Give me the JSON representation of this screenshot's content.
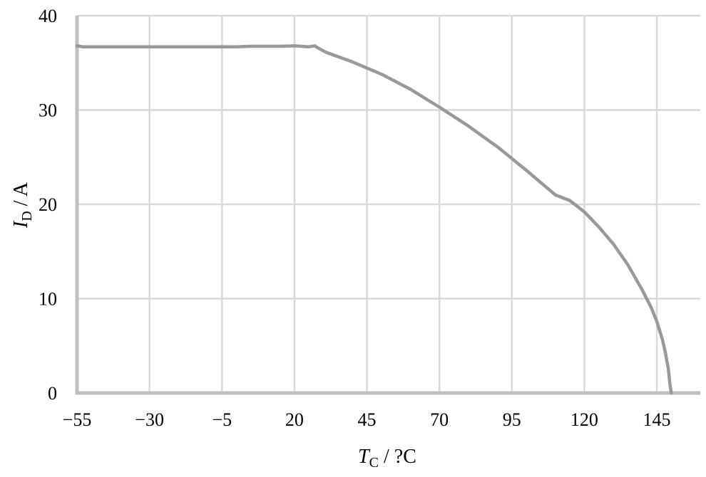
{
  "chart_data": {
    "type": "line",
    "title": "",
    "xlabel": {
      "symbol": "T",
      "subscript": "C",
      "unit_text": " / ?C"
    },
    "ylabel": {
      "symbol": "I",
      "subscript": "D",
      "unit_text": " / A"
    },
    "xlim": [
      -55,
      160
    ],
    "ylim": [
      0,
      40
    ],
    "x_ticks": [
      -55,
      -30,
      -5,
      20,
      45,
      70,
      95,
      120,
      145
    ],
    "x_tick_labels": [
      "−55",
      "−30",
      "−5",
      "20",
      "45",
      "70",
      "95",
      "120",
      "145"
    ],
    "y_ticks": [
      0,
      10,
      20,
      30,
      40
    ],
    "y_tick_labels": [
      "0",
      "10",
      "20",
      "30",
      "40"
    ],
    "grid": true,
    "colors": {
      "grid": "#d9d9d9",
      "axis": "#bfbfbf",
      "line": "#999999"
    },
    "series": [
      {
        "points": [
          [
            -55,
            36.8
          ],
          [
            -53,
            36.7
          ],
          [
            -40,
            36.7
          ],
          [
            -20,
            36.7
          ],
          [
            0,
            36.7
          ],
          [
            5,
            36.75
          ],
          [
            15,
            36.75
          ],
          [
            20,
            36.8
          ],
          [
            25,
            36.7
          ],
          [
            27,
            36.8
          ],
          [
            28,
            36.6
          ],
          [
            31,
            36.1
          ],
          [
            40,
            35.1
          ],
          [
            50,
            33.8
          ],
          [
            60,
            32.2
          ],
          [
            70,
            30.3
          ],
          [
            80,
            28.3
          ],
          [
            90,
            26.1
          ],
          [
            100,
            23.6
          ],
          [
            110,
            21.0
          ],
          [
            115,
            20.4
          ],
          [
            120,
            19.2
          ],
          [
            125,
            17.6
          ],
          [
            130,
            15.8
          ],
          [
            135,
            13.6
          ],
          [
            140,
            10.9
          ],
          [
            143,
            9.1
          ],
          [
            145,
            7.6
          ],
          [
            147,
            5.6
          ],
          [
            148,
            4.2
          ],
          [
            149,
            2.5
          ],
          [
            149.5,
            1.0
          ],
          [
            150,
            0
          ]
        ]
      }
    ]
  }
}
